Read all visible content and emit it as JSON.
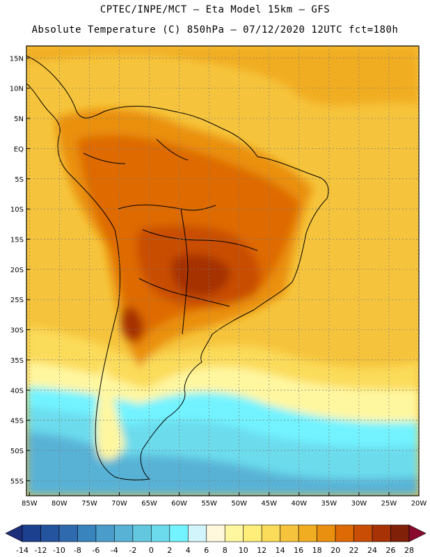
{
  "header": {
    "line1": "CPTEC/INPE/MCT –  Eta Model 15km – GFS",
    "line2": "Absolute Temperature (C) 850hPa – 07/12/2020 12UTC fct=180h"
  },
  "map": {
    "lat_labels": [
      "15N",
      "10N",
      "5N",
      "EQ",
      "5S",
      "10S",
      "15S",
      "20S",
      "25S",
      "30S",
      "35S",
      "40S",
      "45S",
      "50S",
      "55S"
    ],
    "lat_values": [
      15,
      10,
      5,
      0,
      -5,
      -10,
      -15,
      -20,
      -25,
      -30,
      -35,
      -40,
      -45,
      -50,
      -55
    ],
    "lon_labels": [
      "85W",
      "80W",
      "75W",
      "70W",
      "65W",
      "60W",
      "55W",
      "50W",
      "45W",
      "40W",
      "35W",
      "30W",
      "25W",
      "20W"
    ],
    "lon_values": [
      -85,
      -80,
      -75,
      -70,
      -65,
      -60,
      -55,
      -50,
      -45,
      -40,
      -35,
      -30,
      -25,
      -20
    ],
    "extent": {
      "lon_min": -85.5,
      "lon_max": -20,
      "lat_min": -57.5,
      "lat_max": 17
    }
  },
  "legend": {
    "labels": [
      "-14",
      "-12",
      "-10",
      "-8",
      "-6",
      "-4",
      "-2",
      "0",
      "2",
      "4",
      "6",
      "8",
      "10",
      "12",
      "14",
      "16",
      "18",
      "20",
      "22",
      "24",
      "26",
      "28"
    ],
    "colors": [
      "#1c3f8e",
      "#25549f",
      "#2f6aae",
      "#3a84be",
      "#4a9ccb",
      "#58b2d6",
      "#63c8df",
      "#6cdced",
      "#72f3ff",
      "#d2f5fb",
      "#fff8dc",
      "#fff7a0",
      "#ffee7a",
      "#fbdb5a",
      "#f6c43c",
      "#f1ad22",
      "#ea9010",
      "#de6a06",
      "#c94d05",
      "#a63205",
      "#802008"
    ],
    "under_color": "#1d2e7a",
    "over_color": "#8a0a2e"
  }
}
